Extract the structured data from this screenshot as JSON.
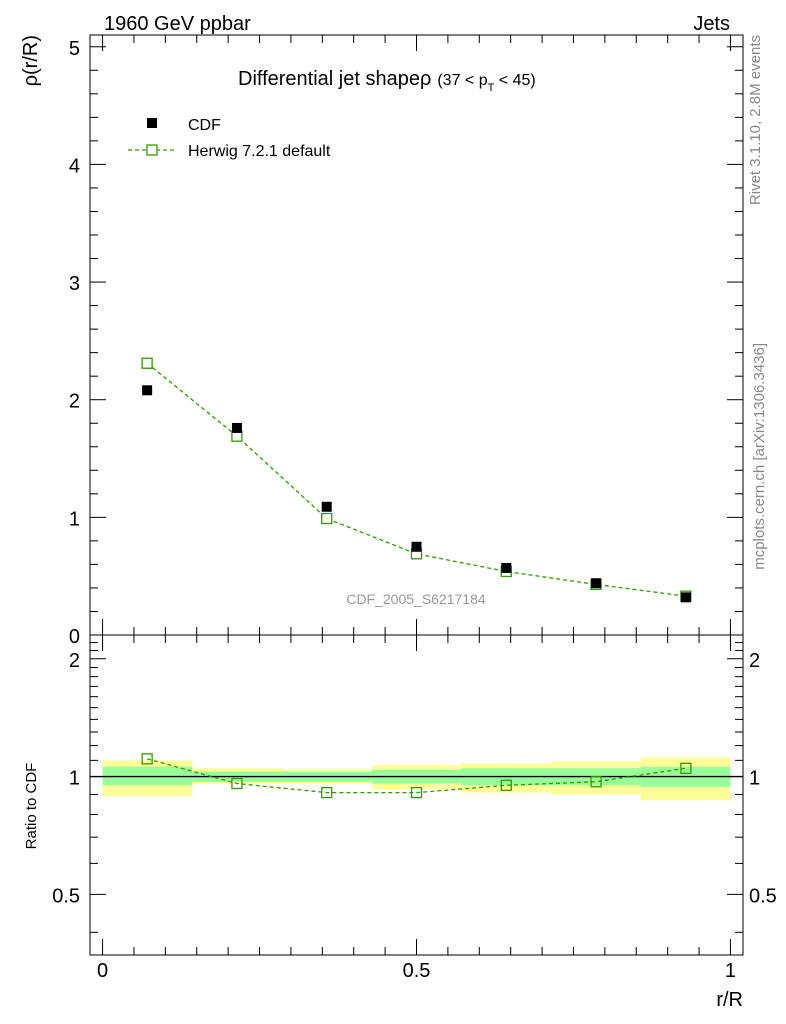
{
  "header": {
    "left": "1960 GeV ppbar",
    "right": "Jets",
    "side_top": "Rivet 3.1.10,  2.8M events",
    "side_bottom": "mcplots.cern.ch [arXiv:1306.3436]"
  },
  "chart_data": [
    {
      "type": "scatter",
      "title_main": "Differential jet shapeρ",
      "title_cut_pre": "(37 < p",
      "title_cut_sub": "T",
      "title_cut_post": " < 45)",
      "ylabel": "ρ(r/R)",
      "watermark": "CDF_2005_S6217184",
      "ylim": [
        0,
        5.1
      ],
      "xlim": [
        -0.02,
        1.02
      ],
      "y_ticks": [
        "0",
        "1",
        "2",
        "3",
        "4",
        "5"
      ],
      "legend_position": "top-left",
      "series": [
        {
          "name": "CDF",
          "color": "#000000",
          "marker": "filled-square",
          "x": [
            0.071,
            0.214,
            0.357,
            0.5,
            0.643,
            0.786,
            0.929
          ],
          "y": [
            2.08,
            1.76,
            1.09,
            0.75,
            0.57,
            0.44,
            0.32
          ],
          "yerr": [
            0.02,
            0.03,
            0.03,
            0.03,
            0.03,
            0.04,
            0.04
          ]
        },
        {
          "name": "Herwig 7.2.1 default",
          "color": "#339900",
          "marker": "open-square",
          "line": "dashed",
          "x": [
            0.071,
            0.214,
            0.357,
            0.5,
            0.643,
            0.786,
            0.929
          ],
          "y": [
            2.31,
            1.69,
            0.99,
            0.69,
            0.54,
            0.43,
            0.33
          ]
        }
      ]
    },
    {
      "type": "line",
      "ylabel": "Ratio to CDF",
      "xlabel": "r/R",
      "ylim": [
        0.35,
        2.3
      ],
      "xlim": [
        -0.02,
        1.02
      ],
      "x_ticks": [
        "0",
        "0.5",
        "1"
      ],
      "y_ticks": [
        "0.5",
        "1",
        "2"
      ],
      "bands": {
        "edges": [
          0,
          0.143,
          0.286,
          0.429,
          0.571,
          0.714,
          0.857,
          1.0
        ],
        "inner": [
          [
            0.95,
            1.06
          ],
          [
            0.97,
            1.03
          ],
          [
            0.97,
            1.03
          ],
          [
            0.96,
            1.04
          ],
          [
            0.95,
            1.05
          ],
          [
            0.95,
            1.05
          ],
          [
            0.94,
            1.06
          ]
        ],
        "outer": [
          [
            0.89,
            1.1
          ],
          [
            0.96,
            1.05
          ],
          [
            0.96,
            1.04
          ],
          [
            0.93,
            1.07
          ],
          [
            0.91,
            1.08
          ],
          [
            0.9,
            1.09
          ],
          [
            0.87,
            1.12
          ]
        ],
        "inner_color": "#99ff99",
        "outer_color": "#ffff99"
      },
      "series": [
        {
          "name": "Herwig 7.2.1 default",
          "color": "#339900",
          "x": [
            0.071,
            0.214,
            0.357,
            0.5,
            0.643,
            0.786,
            0.929
          ],
          "y": [
            1.11,
            0.96,
            0.91,
            0.91,
            0.95,
            0.97,
            1.05
          ]
        }
      ]
    }
  ]
}
